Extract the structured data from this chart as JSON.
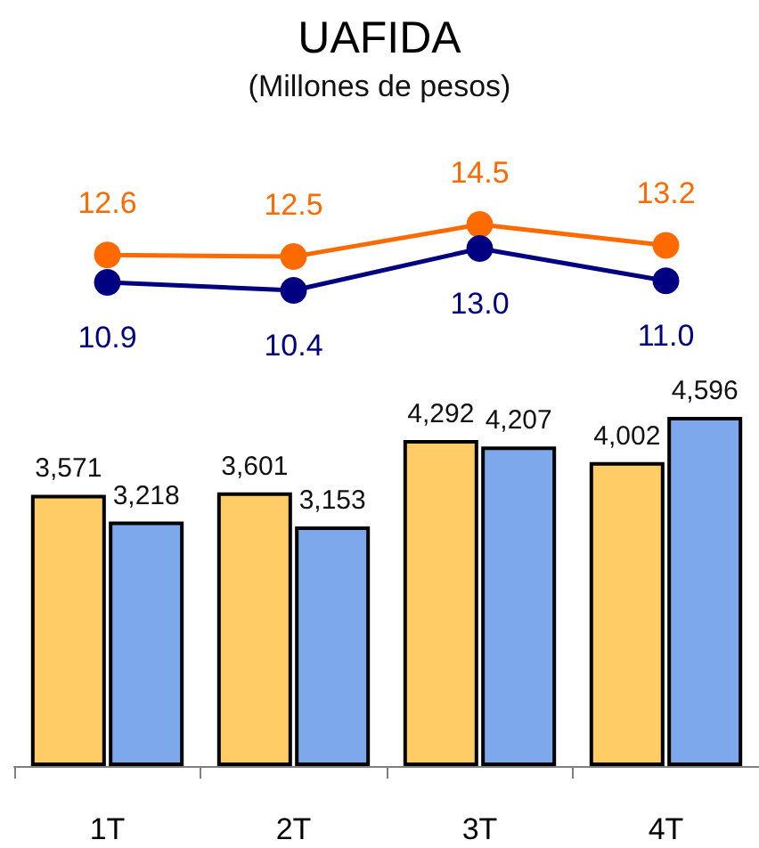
{
  "chart_data": [
    {
      "type": "line",
      "title": "UAFIDA",
      "subtitle": "(Millones de pesos)",
      "categories": [
        null,
        null,
        null,
        null
      ],
      "marker": "circle",
      "series": [
        {
          "color": "#ff6a00",
          "values": [
            12.6,
            12.5,
            14.5,
            13.2
          ],
          "value_labels": [
            "12.6",
            "12.5",
            "14.5",
            "13.2"
          ]
        },
        {
          "color": "#000080",
          "values": [
            10.9,
            10.4,
            13.0,
            11.0
          ],
          "value_labels": [
            "10.9",
            "10.4",
            "13.0",
            "11.0"
          ]
        }
      ]
    },
    {
      "type": "bar",
      "categories": [
        "1T",
        "2T",
        "3T",
        "4T"
      ],
      "series": [
        {
          "color": "#ffcc66",
          "values": [
            3571,
            3601,
            4292,
            4002
          ],
          "value_labels": [
            "3,571",
            "3,601",
            "4,292",
            "4,002"
          ]
        },
        {
          "color": "#7ea8ec",
          "values": [
            3218,
            3153,
            4207,
            4596
          ],
          "value_labels": [
            "3,218",
            "3,153",
            "4,207",
            "4,596"
          ]
        }
      ]
    }
  ]
}
